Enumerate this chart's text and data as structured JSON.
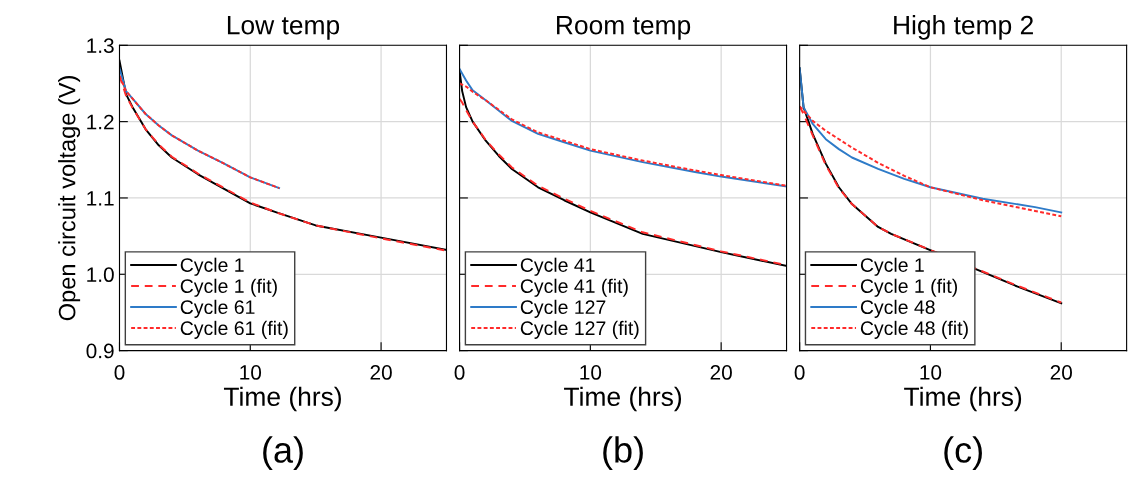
{
  "chart_data": [
    {
      "type": "line",
      "title": "Low temp",
      "xlabel": "Time (hrs)",
      "ylabel": "Open circuit voltage (V)",
      "annotations": [
        "(a)"
      ],
      "xlim": [
        0,
        25
      ],
      "ylim": [
        0.9,
        1.3
      ],
      "xticks": [
        0,
        10,
        20
      ],
      "yticks": [
        0.9,
        {
          "value": 1,
          "label": "1.0"
        },
        1.1,
        1.2,
        1.3
      ],
      "grid": true,
      "legend": "bottom left",
      "series": [
        {
          "name": "Cycle 1",
          "color": "#000000",
          "line_style": "solid",
          "x": [
            0,
            0.5,
            1,
            2,
            3,
            4,
            6,
            8,
            10,
            12,
            15,
            20,
            25
          ],
          "values": [
            1.28,
            1.236,
            1.219,
            1.19,
            1.169,
            1.153,
            1.131,
            1.112,
            1.093,
            1.081,
            1.064,
            1.048,
            1.032
          ]
        },
        {
          "name": "Cycle 1 (fit)",
          "color": "#ff2a2a",
          "line_style": "dashed",
          "x": [
            0,
            0.5,
            1,
            2,
            3,
            4,
            6,
            8,
            10,
            12,
            15,
            20,
            25
          ],
          "values": [
            1.26,
            1.234,
            1.218,
            1.19,
            1.17,
            1.154,
            1.132,
            1.113,
            1.094,
            1.081,
            1.064,
            1.047,
            1.031
          ]
        },
        {
          "name": "Cycle 61",
          "color": "#2e7bc8",
          "line_style": "solid",
          "x": [
            0,
            0.5,
            1,
            2,
            3,
            4,
            6,
            8,
            10,
            12.2
          ],
          "values": [
            1.27,
            1.24,
            1.23,
            1.21,
            1.195,
            1.182,
            1.162,
            1.145,
            1.127,
            1.113
          ]
        },
        {
          "name": "Cycle 61 (fit)",
          "color": "#ff2a2a",
          "line_style": "dotted",
          "x": [
            0,
            0.5,
            1,
            2,
            3,
            4,
            6,
            8,
            10,
            12.2
          ],
          "values": [
            1.26,
            1.24,
            1.23,
            1.21,
            1.195,
            1.182,
            1.162,
            1.145,
            1.127,
            1.113
          ]
        }
      ]
    },
    {
      "type": "line",
      "title": "Room temp",
      "xlabel": "Time (hrs)",
      "annotations": [
        "(b)"
      ],
      "xlim": [
        0,
        25
      ],
      "ylim": [
        0.9,
        1.3
      ],
      "tick_labels": "x",
      "xticks": [
        0,
        10,
        20
      ],
      "yticks": [
        0.9,
        1,
        1.1,
        1.2,
        1.3
      ],
      "grid": true,
      "legend": "bottom left",
      "series": [
        {
          "name": "Cycle 41",
          "color": "#000000",
          "line_style": "solid",
          "x": [
            0,
            0.2,
            0.5,
            1,
            2,
            3,
            4,
            6,
            8,
            10,
            14,
            20,
            25
          ],
          "values": [
            1.267,
            1.24,
            1.219,
            1.2,
            1.175,
            1.155,
            1.138,
            1.114,
            1.097,
            1.081,
            1.053,
            1.029,
            1.011
          ]
        },
        {
          "name": "Cycle 41 (fit)",
          "color": "#ff2a2a",
          "line_style": "dashed",
          "x": [
            0,
            0.2,
            0.5,
            1,
            2,
            3,
            4,
            6,
            8,
            10,
            14,
            20,
            25
          ],
          "values": [
            1.23,
            1.225,
            1.215,
            1.2,
            1.176,
            1.157,
            1.14,
            1.116,
            1.099,
            1.083,
            1.055,
            1.03,
            1.012
          ]
        },
        {
          "name": "Cycle 127",
          "color": "#2e7bc8",
          "line_style": "solid",
          "x": [
            0,
            0.5,
            1,
            2,
            4,
            6,
            8,
            10,
            14,
            18,
            20,
            25
          ],
          "values": [
            1.269,
            1.254,
            1.241,
            1.228,
            1.201,
            1.184,
            1.173,
            1.162,
            1.147,
            1.134,
            1.128,
            1.115
          ]
        },
        {
          "name": "Cycle 127 (fit)",
          "color": "#ff2a2a",
          "line_style": "dotted",
          "x": [
            0,
            0.5,
            1,
            2,
            4,
            6,
            8,
            10,
            14,
            18,
            20,
            25
          ],
          "values": [
            1.25,
            1.246,
            1.239,
            1.228,
            1.203,
            1.186,
            1.175,
            1.164,
            1.149,
            1.136,
            1.13,
            1.116
          ]
        }
      ]
    },
    {
      "type": "line",
      "title": "High temp 2",
      "xlabel": "Time (hrs)",
      "annotations": [
        "(c)"
      ],
      "xlim": [
        0,
        25
      ],
      "ylim": [
        0.9,
        1.3
      ],
      "tick_labels": "x",
      "xticks": [
        0,
        10,
        20
      ],
      "yticks": [
        0.9,
        1,
        1.1,
        1.2,
        1.3
      ],
      "grid": true,
      "legend": "bottom left",
      "series": [
        {
          "name": "Cycle 1",
          "color": "#000000",
          "line_style": "solid",
          "x": [
            0,
            0.3,
            1,
            2,
            3,
            4,
            6,
            7,
            16.5,
            20
          ],
          "values": [
            1.27,
            1.219,
            1.184,
            1.145,
            1.114,
            1.092,
            1.062,
            1.053,
            0.985,
            0.962
          ]
        },
        {
          "name": "Cycle 1 (fit)",
          "color": "#ff2a2a",
          "line_style": "dashed",
          "x": [
            0,
            0.3,
            1,
            2,
            3,
            4,
            6,
            7,
            16.5,
            20
          ],
          "values": [
            1.22,
            1.21,
            1.182,
            1.143,
            1.113,
            1.092,
            1.062,
            1.053,
            0.986,
            0.963
          ]
        },
        {
          "name": "Cycle 48",
          "color": "#2e7bc8",
          "line_style": "solid",
          "x": [
            0,
            0.3,
            1,
            2,
            3,
            4,
            6,
            8,
            10,
            14,
            18,
            20
          ],
          "values": [
            1.27,
            1.219,
            1.197,
            1.177,
            1.164,
            1.153,
            1.138,
            1.125,
            1.114,
            1.099,
            1.088,
            1.081
          ]
        },
        {
          "name": "Cycle 48 (fit)",
          "color": "#ff2a2a",
          "line_style": "dotted",
          "x": [
            0,
            1,
            2,
            4,
            6,
            8,
            10,
            14,
            18,
            20
          ],
          "values": [
            1.22,
            1.201,
            1.188,
            1.166,
            1.146,
            1.129,
            1.114,
            1.097,
            1.083,
            1.076
          ]
        }
      ]
    }
  ]
}
